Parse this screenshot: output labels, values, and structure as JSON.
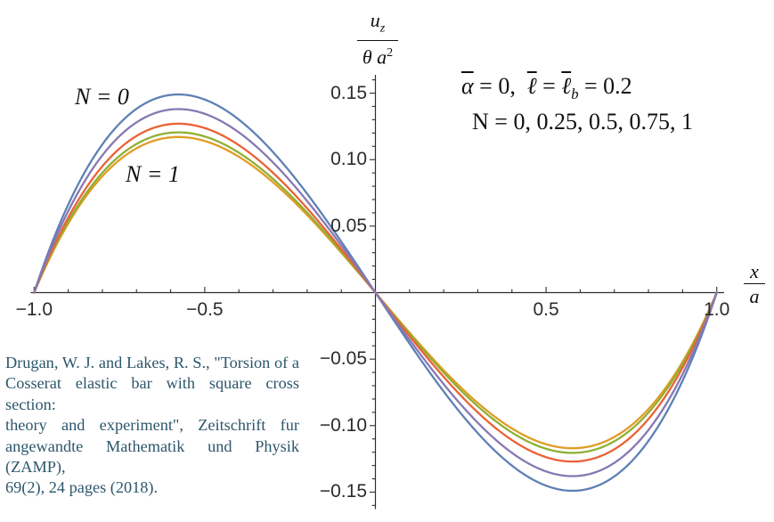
{
  "figure": {
    "background": "#ffffff",
    "axis_color": "#2e2e2e"
  },
  "y_axis_label": {
    "num_var": "u",
    "num_sub": "z",
    "den_main": "θ a",
    "den_exp": "2"
  },
  "x_axis_label": {
    "num": "x",
    "den": "a"
  },
  "tick_labels": {
    "x": [
      {
        "v": -1.0,
        "t": "−1.0"
      },
      {
        "v": -0.5,
        "t": "−0.5"
      },
      {
        "v": 0.5,
        "t": "0.5"
      },
      {
        "v": 1.0,
        "t": "1.0"
      }
    ],
    "y": [
      {
        "v": 0.15,
        "t": "0.15"
      },
      {
        "v": 0.1,
        "t": "0.10"
      },
      {
        "v": 0.05,
        "t": "0.05"
      },
      {
        "v": -0.05,
        "t": "−0.05"
      },
      {
        "v": -0.1,
        "t": "−0.10"
      },
      {
        "v": -0.15,
        "t": "−0.15"
      }
    ]
  },
  "annotations": {
    "params": {
      "alpha": "α",
      "eq1": " = 0,  ",
      "ell1": "ℓ",
      "eq2": " = ",
      "ell2": "ℓ",
      "sub_b": "b",
      "eq3": " = 0.2"
    },
    "n_values": "N = 0, 0.25, 0.5, 0.75, 1",
    "curve_label_top": "N = 0",
    "curve_label_bottom": "N = 1"
  },
  "citation": {
    "color": "#2d566b",
    "lines": [
      "Drugan, W. J. and Lakes, R. S., \"Torsion of a",
      "Cosserat elastic bar with square cross section:",
      "theory and experiment\", Zeitschrift fur",
      "angewandte Mathematik und Physik (ZAMP),",
      "69(2), 24 pages (2018)."
    ]
  },
  "chart_data": {
    "type": "line",
    "title": "",
    "xlabel": "x/a",
    "ylabel": "u_z/(θ a²)",
    "x_range": [
      -1.01,
      1.02
    ],
    "y_range": [
      -0.163,
      0.163
    ],
    "x_major_ticks": [
      -1.0,
      -0.5,
      0.5,
      1.0
    ],
    "x_minor_tick_step": 0.1,
    "y_major_ticks": [
      -0.15,
      -0.1,
      -0.05,
      0.05,
      0.1,
      0.15
    ],
    "y_minor_tick_step": 0.01,
    "grid": false,
    "legend": "none; curves labeled inline (N = 0 largest amplitude, N = 1 smallest)",
    "annotations": [
      "ᾱ = 0, ℓ̄ = ℓ̄b = 0.2",
      "N = 0, 0.25, 0.5, 0.75, 1"
    ],
    "curve_shape": "odd antisymmetric curves through (−1,0), (0,0), (1,0); extrema near |x/a| ≈ 0.58; approximated by y = A·x(x²−1)/0.385",
    "x_samples": [
      -1,
      -0.75,
      -0.5,
      -0.25,
      0,
      0.25,
      0.5,
      0.75,
      1
    ],
    "series": [
      {
        "name": "N = 0",
        "N": 0,
        "amplitude": 0.149,
        "color": "#5E81B5",
        "y_samples": [
          0,
          0.127,
          0.145,
          0.091,
          0,
          -0.091,
          -0.145,
          -0.127,
          0
        ]
      },
      {
        "name": "N = 0.25",
        "N": 0.25,
        "amplitude": 0.138,
        "color": "#8778B3",
        "y_samples": [
          0,
          0.118,
          0.134,
          0.084,
          0,
          -0.084,
          -0.134,
          -0.118,
          0
        ]
      },
      {
        "name": "N = 0.5",
        "N": 0.5,
        "amplitude": 0.127,
        "color": "#EB6235",
        "y_samples": [
          0,
          0.108,
          0.124,
          0.077,
          0,
          -0.077,
          -0.124,
          -0.108,
          0
        ]
      },
      {
        "name": "N = 0.75",
        "N": 0.75,
        "amplitude": 0.1205,
        "color": "#8FB032",
        "y_samples": [
          0,
          0.103,
          0.117,
          0.073,
          0,
          -0.073,
          -0.117,
          -0.103,
          0
        ]
      },
      {
        "name": "N = 1",
        "N": 1,
        "amplitude": 0.117,
        "color": "#E19C24",
        "y_samples": [
          0,
          0.1,
          0.114,
          0.071,
          0,
          -0.071,
          -0.114,
          -0.1,
          0
        ]
      }
    ],
    "draw_order": [
      0,
      4,
      3,
      2,
      1
    ]
  }
}
